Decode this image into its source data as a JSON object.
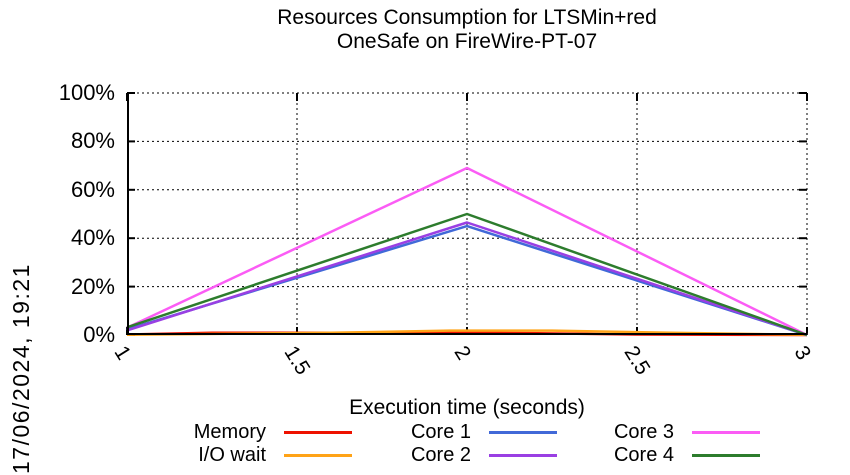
{
  "title": {
    "line1": "Resources Consumption for LTSMin+red",
    "line2": "OneSafe on FireWire-PT-07"
  },
  "timestamp": "17/06/2024, 19:21",
  "xaxis": {
    "title": "Execution time (seconds)"
  },
  "chart_data": {
    "type": "line",
    "title": "Resources Consumption for LTSMin+red OneSafe on FireWire-PT-07",
    "xlabel": "Execution time (seconds)",
    "ylabel": "",
    "xlim": [
      1,
      3
    ],
    "ylim": [
      0,
      100
    ],
    "xticks": [
      1,
      1.5,
      2,
      2.5,
      3
    ],
    "xtick_labels": [
      "1",
      "1.5",
      "2",
      "2.5",
      "3"
    ],
    "yticks": [
      0,
      20,
      40,
      60,
      80,
      100
    ],
    "ytick_labels": [
      "0%",
      "20%",
      "40%",
      "60%",
      "80%",
      "100%"
    ],
    "grid": true,
    "legend_position": "bottom",
    "legend_layout": [
      [
        0,
        1
      ],
      [
        2,
        3
      ],
      [
        4,
        5
      ]
    ],
    "series": [
      {
        "name": "Memory",
        "color": "#ee1100",
        "points": [
          [
            1,
            0.2
          ],
          [
            1.25,
            0.9
          ],
          [
            2.1,
            0.9
          ],
          [
            2.5,
            0.2
          ],
          [
            3,
            0
          ]
        ]
      },
      {
        "name": "I/O wait",
        "color": "#ffa317",
        "points": [
          [
            1,
            0.1
          ],
          [
            1.6,
            0.9
          ],
          [
            1.95,
            1.8
          ],
          [
            2.25,
            1.8
          ],
          [
            2.6,
            0.9
          ],
          [
            3,
            0.1
          ]
        ]
      },
      {
        "name": "Core 1",
        "color": "#4169d8",
        "points": [
          [
            1,
            2.3
          ],
          [
            2,
            45
          ],
          [
            3,
            0
          ]
        ]
      },
      {
        "name": "Core 2",
        "color": "#9a3fe3",
        "points": [
          [
            1,
            1.9
          ],
          [
            2,
            46.5
          ],
          [
            3,
            0
          ]
        ]
      },
      {
        "name": "Core 3",
        "color": "#fb5cf5",
        "points": [
          [
            1,
            3
          ],
          [
            2,
            69
          ],
          [
            3,
            0
          ]
        ]
      },
      {
        "name": "Core 4",
        "color": "#2d7c2d",
        "points": [
          [
            1,
            3.2
          ],
          [
            2,
            50
          ],
          [
            3,
            0
          ]
        ]
      }
    ]
  }
}
